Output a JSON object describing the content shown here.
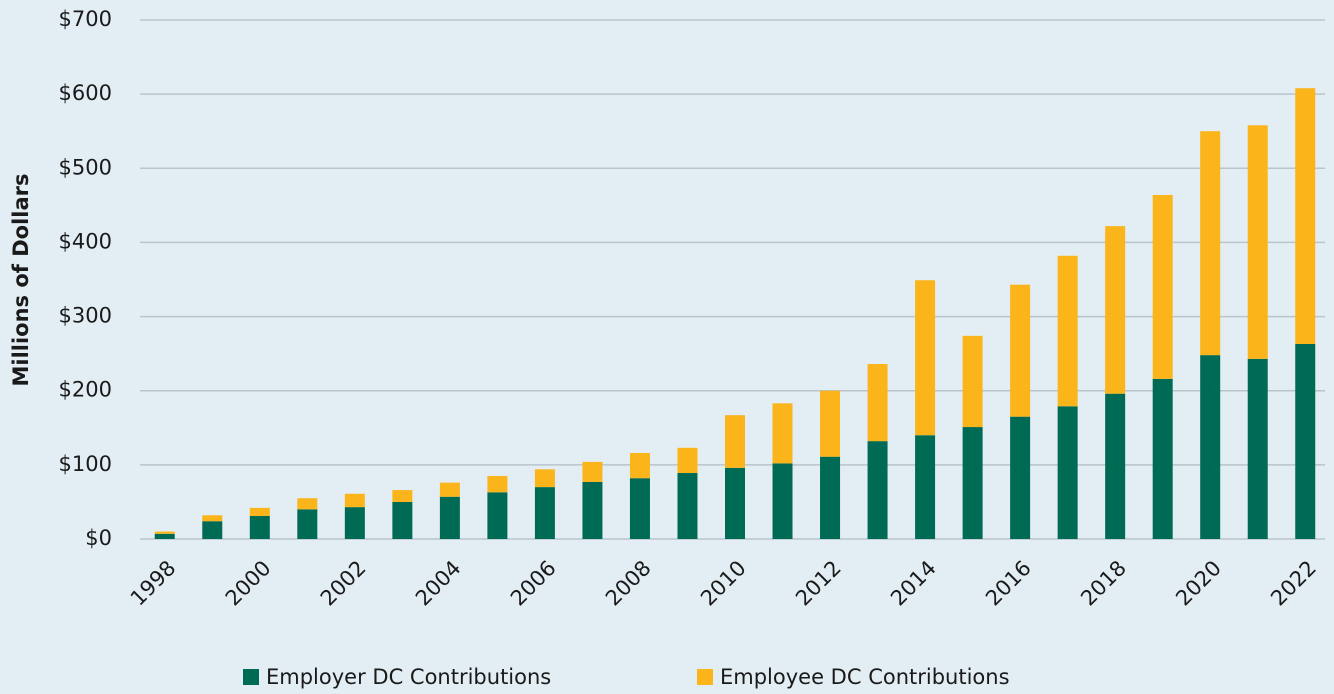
{
  "chart_data": {
    "type": "stacked_bar",
    "ylabel": "Millions of Dollars",
    "categories": [
      "1998",
      null,
      "2000",
      null,
      "2002",
      null,
      "2004",
      null,
      "2006",
      null,
      "2008",
      null,
      "2010",
      null,
      "2012",
      null,
      "2014",
      null,
      "2016",
      null,
      "2018",
      null,
      "2020",
      null,
      "2022"
    ],
    "series": [
      {
        "name": "Employer DC Contributions",
        "color": "#006b54",
        "values": [
          7,
          24,
          31,
          40,
          43,
          50,
          57,
          63,
          70,
          77,
          82,
          89,
          96,
          102,
          111,
          132,
          140,
          151,
          165,
          179,
          196,
          216,
          248,
          243,
          263
        ]
      },
      {
        "name": "Employee DC Contributions",
        "color": "#fbb41a",
        "values": [
          3,
          8,
          11,
          15,
          18,
          16,
          19,
          22,
          24,
          27,
          34,
          34,
          71,
          81,
          89,
          104,
          209,
          123,
          178,
          203,
          226,
          248,
          302,
          315,
          345
        ]
      }
    ],
    "ylim": [
      0,
      700
    ],
    "yticks": [
      {
        "value": 0,
        "label": "$0"
      },
      {
        "value": 100,
        "label": "$100"
      },
      {
        "value": 200,
        "label": "$200"
      },
      {
        "value": 300,
        "label": "$300"
      },
      {
        "value": 400,
        "label": "$400"
      },
      {
        "value": 500,
        "label": "$500"
      },
      {
        "value": 600,
        "label": "$600"
      },
      {
        "value": 700,
        "label": "$700"
      }
    ],
    "grid": true,
    "legend": "bottom"
  }
}
